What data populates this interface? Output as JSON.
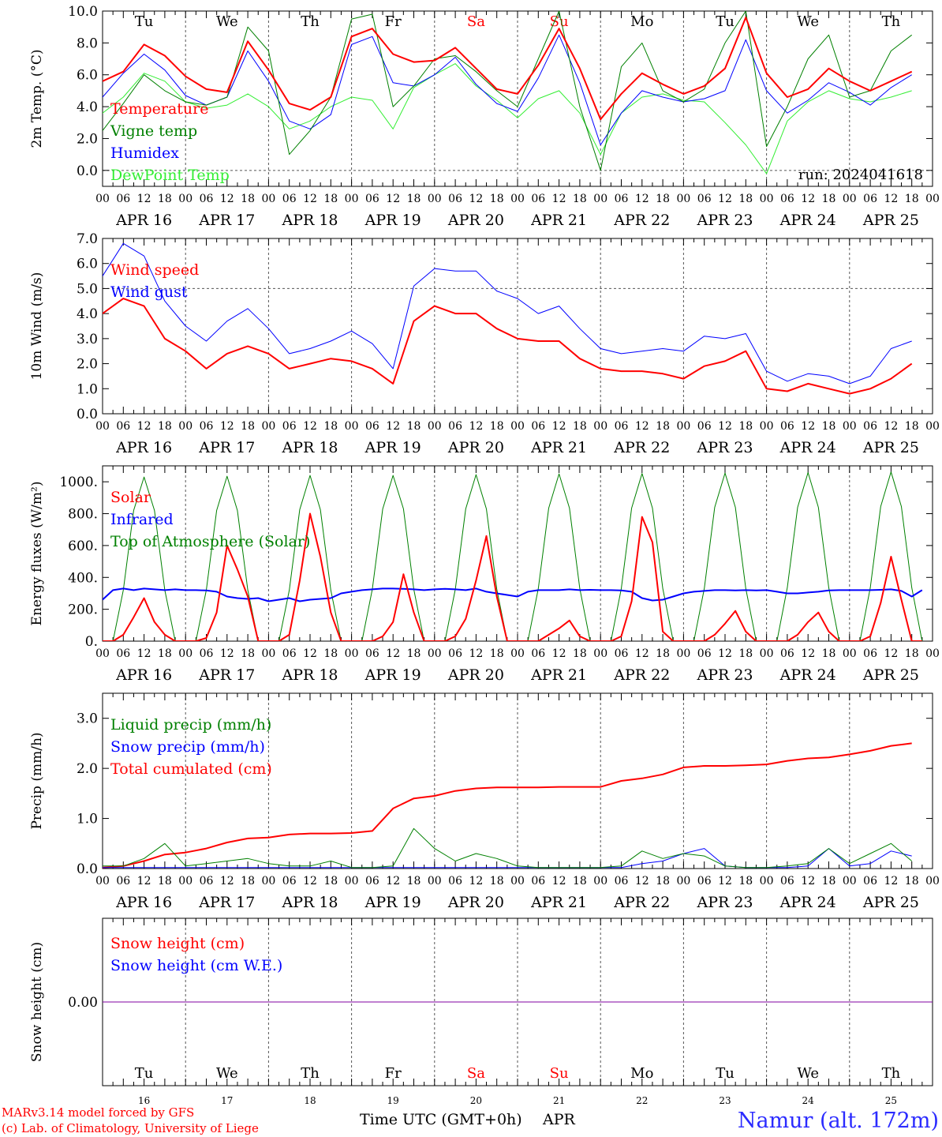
{
  "meteogram": {
    "run_label": "run: 2024041618",
    "x_hour_ticks": [
      "00",
      "06",
      "12",
      "18"
    ],
    "date_labels": [
      "APR 16",
      "APR 17",
      "APR 18",
      "APR 19",
      "APR 20",
      "APR 21",
      "APR 22",
      "APR 23",
      "APR 24",
      "APR 25"
    ],
    "day_names": [
      "Tu",
      "We",
      "Th",
      "Fr",
      "Sa",
      "Su",
      "Mo",
      "Tu",
      "We",
      "Th"
    ],
    "day_numbers": [
      "16",
      "17",
      "18",
      "19",
      "20",
      "21",
      "22",
      "23",
      "24",
      "25"
    ],
    "weekend_indices": [
      4,
      5
    ],
    "weekend_color": "#ff0000",
    "xlabel": "Time UTC (GMT+0h)",
    "month": "APR",
    "footer_left": [
      "MARv3.14 model forced by GFS",
      "(c) Lab. of Climatology, University of Liege"
    ],
    "station": "Namur (alt. 172m)",
    "station_color": "#2b2bff"
  },
  "chart_data": [
    {
      "id": "temp",
      "type": "line",
      "ylabel": "2m Temp. (°C)",
      "ylim": [
        -1,
        10
      ],
      "yticks": [
        0,
        2,
        4,
        6,
        8,
        10
      ],
      "ytick_labels": [
        "0.0",
        "2.0",
        "4.0",
        "6.0",
        "8.0",
        "10.0"
      ],
      "hline": [
        0
      ],
      "legend_position": "top-left",
      "x_hours": [
        0,
        6,
        12,
        18,
        24,
        30,
        36,
        42,
        48,
        54,
        60,
        66,
        72,
        78,
        84,
        90,
        96,
        102,
        108,
        114,
        120,
        126,
        132,
        138,
        144,
        150,
        156,
        162,
        168,
        174,
        180,
        186,
        192,
        198,
        204,
        210,
        216,
        222,
        228,
        234
      ],
      "series": [
        {
          "name": "Temperature",
          "color": "#ff0000",
          "width": 2,
          "values": [
            5.6,
            6.2,
            7.9,
            7.2,
            5.9,
            5.1,
            4.9,
            8.1,
            6.3,
            4.2,
            3.8,
            4.6,
            8.4,
            8.9,
            7.3,
            6.8,
            6.9,
            7.7,
            6.4,
            5.1,
            4.8,
            6.6,
            8.9,
            6.4,
            3.2,
            4.8,
            6.1,
            5.4,
            4.8,
            5.3,
            6.4,
            9.6,
            6.1,
            4.6,
            5.1,
            6.4,
            5.6,
            5.0,
            5.6,
            6.2
          ]
        },
        {
          "name": "Vigne temp",
          "color": "#008000",
          "width": 1,
          "values": [
            2.5,
            4.2,
            6.0,
            5.0,
            4.3,
            4.1,
            4.6,
            9.0,
            7.5,
            1.0,
            2.5,
            4.6,
            9.5,
            9.8,
            4.0,
            5.3,
            7.0,
            7.2,
            6.2,
            5.0,
            4.0,
            7.0,
            10.0,
            4.0,
            0.0,
            6.5,
            8.0,
            5.0,
            4.3,
            5.1,
            8.0,
            10.0,
            1.5,
            4.0,
            7.0,
            8.5,
            4.6,
            5.0,
            7.5,
            8.5
          ]
        },
        {
          "name": "Humidex",
          "color": "#0000ff",
          "width": 1,
          "values": [
            4.6,
            6.1,
            7.3,
            6.3,
            4.7,
            4.1,
            4.6,
            7.5,
            5.6,
            3.1,
            2.6,
            3.5,
            7.9,
            8.4,
            5.5,
            5.3,
            6.0,
            7.1,
            5.4,
            4.2,
            3.7,
            5.8,
            8.5,
            5.5,
            1.6,
            3.6,
            5.0,
            4.6,
            4.3,
            4.5,
            5.0,
            8.2,
            5.0,
            3.6,
            4.4,
            5.5,
            4.9,
            4.1,
            5.2,
            6.0
          ]
        },
        {
          "name": "DewPoint Temp",
          "color": "#33ee33",
          "width": 1,
          "values": [
            3.6,
            4.6,
            6.1,
            5.6,
            4.3,
            3.9,
            4.1,
            4.8,
            4.0,
            2.6,
            3.1,
            4.0,
            4.6,
            4.4,
            2.6,
            5.2,
            6.0,
            6.7,
            5.3,
            4.4,
            3.3,
            4.5,
            5.0,
            3.6,
            1.0,
            3.6,
            4.6,
            4.8,
            4.4,
            4.3,
            3.0,
            1.6,
            -0.2,
            3.1,
            4.3,
            5.0,
            4.5,
            4.3,
            4.6,
            5.0
          ]
        }
      ]
    },
    {
      "id": "wind",
      "type": "line",
      "ylabel": "10m Wind (m/s)",
      "ylim": [
        0,
        7
      ],
      "yticks": [
        0,
        1,
        2,
        3,
        4,
        5,
        6,
        7
      ],
      "ytick_labels": [
        "0.0",
        "1.0",
        "2.0",
        "3.0",
        "4.0",
        "5.0",
        "6.0",
        "7.0"
      ],
      "hline": [
        5
      ],
      "legend_position": "top-left",
      "x_hours": [
        0,
        6,
        12,
        18,
        24,
        30,
        36,
        42,
        48,
        54,
        60,
        66,
        72,
        78,
        84,
        90,
        96,
        102,
        108,
        114,
        120,
        126,
        132,
        138,
        144,
        150,
        156,
        162,
        168,
        174,
        180,
        186,
        192,
        198,
        204,
        210,
        216,
        222,
        228,
        234
      ],
      "series": [
        {
          "name": "Wind speed",
          "color": "#ff0000",
          "width": 2,
          "values": [
            4.0,
            4.6,
            4.3,
            3.0,
            2.5,
            1.8,
            2.4,
            2.7,
            2.4,
            1.8,
            2.0,
            2.2,
            2.1,
            1.8,
            1.2,
            3.7,
            4.3,
            4.0,
            4.0,
            3.4,
            3.0,
            2.9,
            2.9,
            2.2,
            1.8,
            1.7,
            1.7,
            1.6,
            1.4,
            1.9,
            2.1,
            2.5,
            1.0,
            0.9,
            1.2,
            1.0,
            0.8,
            1.0,
            1.4,
            2.0
          ]
        },
        {
          "name": "Wind gust",
          "color": "#0000ff",
          "width": 1,
          "values": [
            5.5,
            6.8,
            6.3,
            4.5,
            3.5,
            2.9,
            3.7,
            4.2,
            3.4,
            2.4,
            2.6,
            2.9,
            3.3,
            2.8,
            1.8,
            5.1,
            5.8,
            5.7,
            5.7,
            4.9,
            4.6,
            4.0,
            4.3,
            3.4,
            2.6,
            2.4,
            2.5,
            2.6,
            2.5,
            3.1,
            3.0,
            3.2,
            1.7,
            1.3,
            1.6,
            1.5,
            1.2,
            1.5,
            2.6,
            2.9
          ]
        }
      ]
    },
    {
      "id": "energy",
      "type": "line",
      "ylabel": "Energy fluxes (W/m²)",
      "ylim": [
        0,
        1100
      ],
      "yticks": [
        0,
        200,
        400,
        600,
        800,
        1000
      ],
      "ytick_labels": [
        "0.",
        "200.",
        "400.",
        "600.",
        "800.",
        "1000."
      ],
      "hline": [],
      "legend_position": "top-left",
      "x_hours": [
        0,
        3,
        6,
        9,
        12,
        15,
        18,
        21,
        24,
        27,
        30,
        33,
        36,
        39,
        42,
        45,
        48,
        51,
        54,
        57,
        60,
        63,
        66,
        69,
        72,
        75,
        78,
        81,
        84,
        87,
        90,
        93,
        96,
        99,
        102,
        105,
        108,
        111,
        114,
        117,
        120,
        123,
        126,
        129,
        132,
        135,
        138,
        141,
        144,
        147,
        150,
        153,
        156,
        159,
        162,
        165,
        168,
        171,
        174,
        177,
        180,
        183,
        186,
        189,
        192,
        195,
        198,
        201,
        204,
        207,
        210,
        213,
        216,
        219,
        222,
        225,
        228,
        231,
        234,
        237
      ],
      "series": [
        {
          "name": "Solar",
          "color": "#ff0000",
          "width": 2,
          "values": [
            0,
            0,
            40,
            150,
            270,
            120,
            40,
            0,
            0,
            0,
            20,
            180,
            600,
            450,
            280,
            0,
            0,
            0,
            40,
            380,
            800,
            530,
            180,
            0,
            0,
            0,
            0,
            30,
            120,
            420,
            180,
            0,
            0,
            0,
            30,
            140,
            380,
            660,
            280,
            0,
            0,
            0,
            0,
            40,
            80,
            130,
            30,
            0,
            0,
            0,
            30,
            250,
            780,
            620,
            60,
            0,
            0,
            0,
            0,
            40,
            110,
            190,
            60,
            0,
            0,
            0,
            0,
            40,
            120,
            180,
            60,
            0,
            0,
            0,
            30,
            240,
            530,
            260,
            0,
            0
          ]
        },
        {
          "name": "Infrared",
          "color": "#0000ff",
          "width": 2,
          "values": [
            260,
            320,
            330,
            320,
            330,
            325,
            320,
            325,
            320,
            320,
            318,
            310,
            280,
            270,
            265,
            270,
            250,
            260,
            270,
            250,
            260,
            265,
            270,
            300,
            310,
            320,
            325,
            330,
            330,
            328,
            325,
            320,
            325,
            328,
            325,
            320,
            330,
            310,
            300,
            290,
            280,
            310,
            320,
            320,
            320,
            325,
            320,
            322,
            320,
            320,
            318,
            310,
            270,
            255,
            260,
            280,
            300,
            310,
            315,
            320,
            320,
            318,
            320,
            318,
            320,
            310,
            300,
            300,
            305,
            310,
            318,
            320,
            320,
            320,
            320,
            322,
            325,
            315,
            280,
            320
          ]
        },
        {
          "name": "Top of Atmosphere (Solar)",
          "color": "#008000",
          "width": 1,
          "values": [
            0,
            0,
            320,
            820,
            1030,
            820,
            320,
            0,
            0,
            0,
            320,
            820,
            1035,
            820,
            320,
            0,
            0,
            0,
            320,
            825,
            1040,
            825,
            320,
            0,
            0,
            0,
            325,
            830,
            1040,
            830,
            325,
            0,
            0,
            0,
            325,
            830,
            1045,
            830,
            325,
            0,
            0,
            0,
            330,
            835,
            1050,
            835,
            330,
            0,
            0,
            0,
            330,
            835,
            1052,
            835,
            330,
            0,
            0,
            0,
            330,
            840,
            1055,
            840,
            330,
            0,
            0,
            0,
            335,
            840,
            1058,
            840,
            335,
            0,
            0,
            0,
            335,
            845,
            1062,
            845,
            335,
            0
          ]
        }
      ]
    },
    {
      "id": "precip",
      "type": "line",
      "ylabel": "Precip (mm/h)",
      "ylim": [
        0,
        3.5
      ],
      "yticks": [
        0,
        1,
        2,
        3
      ],
      "ytick_labels": [
        "0.0",
        "1.0",
        "2.0",
        "3.0"
      ],
      "hline": [],
      "legend_position": "top-left",
      "x_hours": [
        0,
        6,
        12,
        18,
        24,
        30,
        36,
        42,
        48,
        54,
        60,
        66,
        72,
        78,
        84,
        90,
        96,
        102,
        108,
        114,
        120,
        126,
        132,
        138,
        144,
        150,
        156,
        162,
        168,
        174,
        180,
        186,
        192,
        198,
        204,
        210,
        216,
        222,
        228,
        234
      ],
      "series": [
        {
          "name": "Liquid precip (mm/h)",
          "color": "#008000",
          "width": 1,
          "values": [
            0.05,
            0.05,
            0.2,
            0.5,
            0.05,
            0.1,
            0.15,
            0.2,
            0.1,
            0.05,
            0.05,
            0.15,
            0.02,
            0.02,
            0.05,
            0.8,
            0.4,
            0.15,
            0.3,
            0.2,
            0.05,
            0.02,
            0.02,
            0.02,
            0.02,
            0.05,
            0.35,
            0.2,
            0.3,
            0.25,
            0.05,
            0.02,
            0.02,
            0.05,
            0.1,
            0.4,
            0.1,
            0.3,
            0.5,
            0.15
          ]
        },
        {
          "name": "Snow precip (mm/h)",
          "color": "#0000ff",
          "width": 1,
          "values": [
            0.02,
            0.02,
            0.02,
            0.02,
            0.02,
            0.02,
            0.02,
            0.02,
            0.02,
            0.02,
            0.02,
            0.02,
            0.02,
            0.02,
            0.02,
            0.02,
            0.02,
            0.02,
            0.02,
            0.02,
            0.02,
            0.02,
            0.02,
            0.02,
            0.02,
            0.02,
            0.1,
            0.15,
            0.3,
            0.4,
            0.05,
            0.02,
            0.02,
            0.02,
            0.05,
            0.4,
            0.05,
            0.1,
            0.35,
            0.25
          ]
        },
        {
          "name": "Total cumulated (cm)",
          "color": "#ff0000",
          "width": 2,
          "values": [
            0.02,
            0.05,
            0.15,
            0.28,
            0.32,
            0.4,
            0.52,
            0.6,
            0.62,
            0.68,
            0.7,
            0.7,
            0.71,
            0.75,
            1.2,
            1.4,
            1.45,
            1.55,
            1.6,
            1.62,
            1.62,
            1.62,
            1.63,
            1.63,
            1.63,
            1.75,
            1.8,
            1.88,
            2.02,
            2.05,
            2.05,
            2.06,
            2.08,
            2.15,
            2.2,
            2.22,
            2.28,
            2.35,
            2.45,
            2.5
          ]
        }
      ]
    },
    {
      "id": "snow",
      "type": "line",
      "ylabel": "Snow height (cm)",
      "ylim": [
        -1,
        1
      ],
      "yticks": [
        0
      ],
      "ytick_labels": [
        "0.00"
      ],
      "hline": [],
      "legend_position": "top-left",
      "x_hours": [
        0,
        240
      ],
      "series": [
        {
          "name": "Snow height (cm)",
          "color": "#ff0000",
          "width": 1,
          "values": [
            0,
            0
          ]
        },
        {
          "name": "Snow height (cm W.E.)",
          "color": "#0000ff",
          "width": 1,
          "values": [
            0,
            0
          ]
        }
      ]
    }
  ]
}
